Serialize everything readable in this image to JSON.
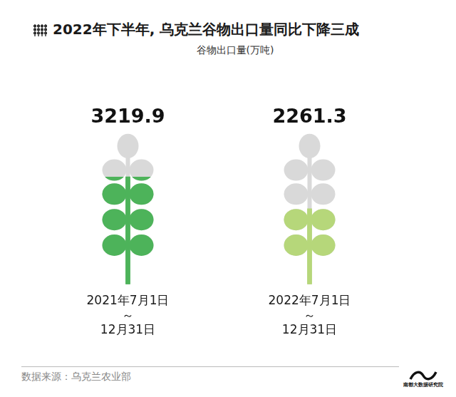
{
  "chart_data": {
    "type": "pictogram_bar",
    "title": "2022年下半年, 乌克兰谷物出口量同比下降三成",
    "subtitle": "谷物出口量(万吨)",
    "categories": [
      [
        "2021年7月1日",
        "～",
        "12月31日"
      ],
      [
        "2022年7月1日",
        "～",
        "12月31日"
      ]
    ],
    "values": [
      3219.9,
      2261.3
    ],
    "colors": [
      "#4db35a",
      "#b6d77a"
    ],
    "ylim": [
      0,
      4500
    ],
    "tick_labels": "x",
    "grid": false,
    "data_labels": true,
    "source": "数据来源：乌克兰农业部",
    "credit": "南都大数据研究院"
  }
}
